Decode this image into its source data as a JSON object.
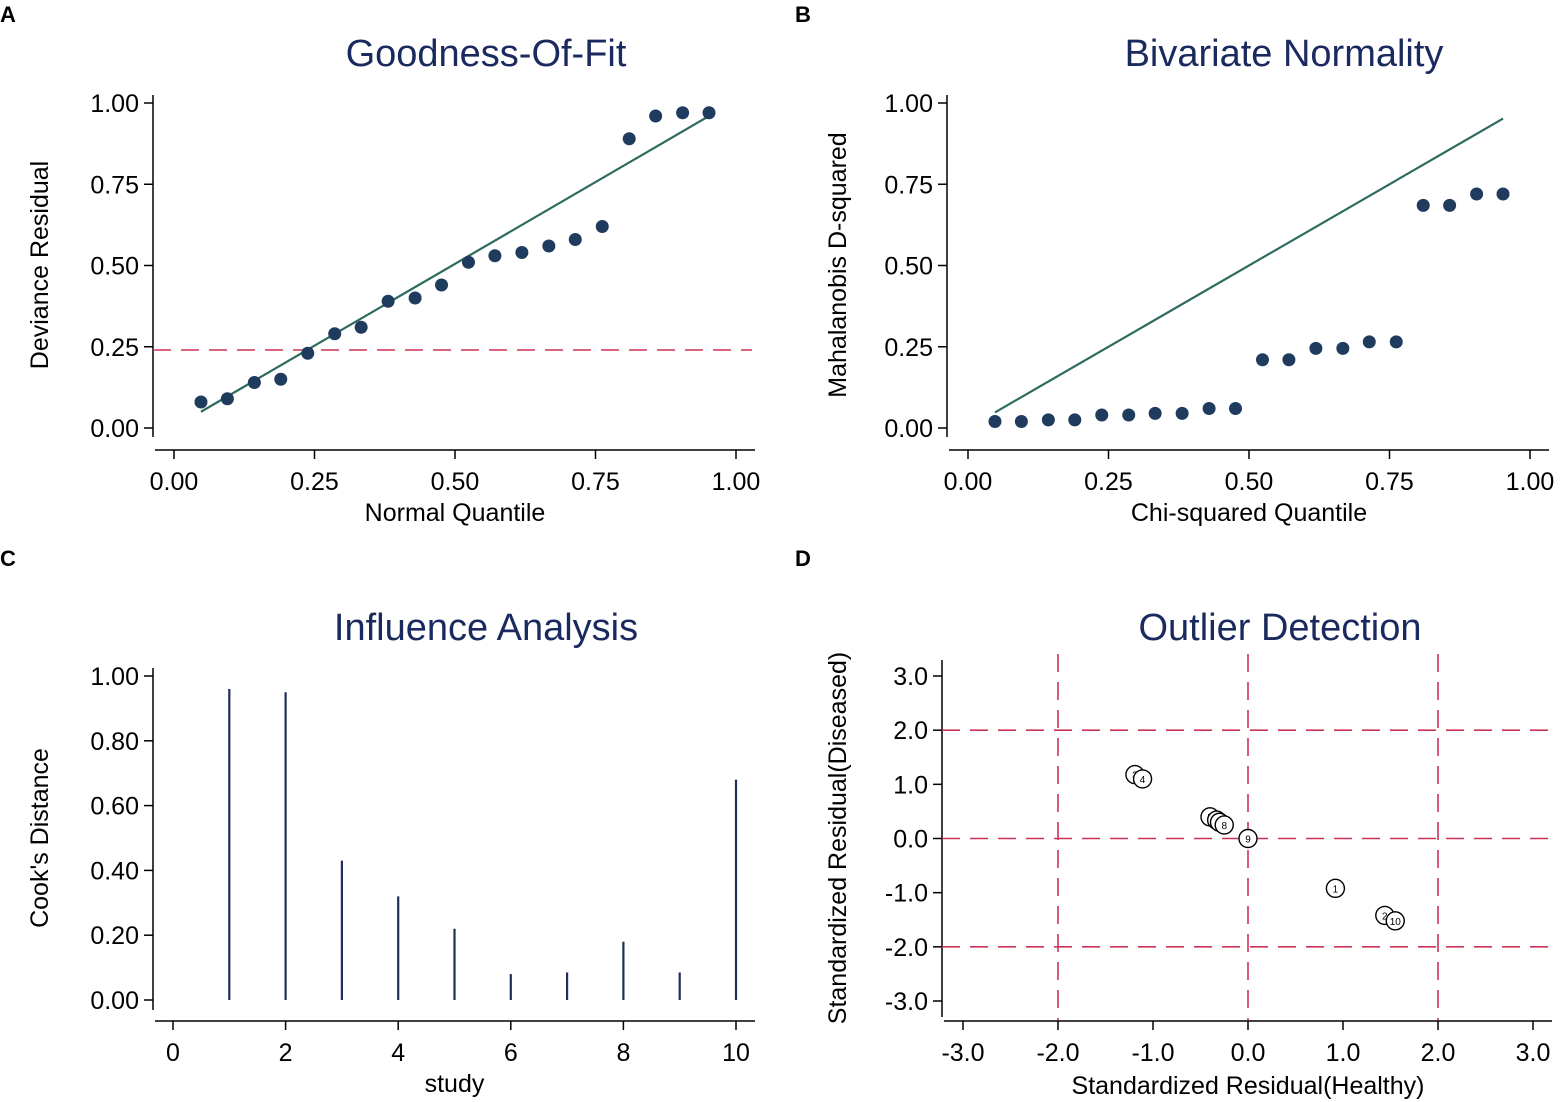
{
  "colors": {
    "title": "#1a2a5e",
    "point": "#1f3b5e",
    "fit_line": "#2e6b5e",
    "ref_line": "#cc3355",
    "spike": "#1f2f5a"
  },
  "chart_data": [
    {
      "id": "A",
      "panel_label": "A",
      "type": "scatter",
      "title": "Goodness-Of-Fit",
      "xlabel": "Normal Quantile",
      "ylabel": "Deviance Residual",
      "xlim": [
        0,
        1
      ],
      "ylim": [
        0,
        1
      ],
      "xticks": [
        0,
        0.25,
        0.5,
        0.75,
        1
      ],
      "yticks": [
        0,
        0.25,
        0.5,
        0.75,
        1
      ],
      "xtick_labels": [
        "0.00",
        "0.25",
        "0.50",
        "0.75",
        "1.00"
      ],
      "ytick_labels": [
        "0.00",
        "0.25",
        "0.50",
        "0.75",
        "1.00"
      ],
      "x": [
        0.048,
        0.095,
        0.143,
        0.19,
        0.238,
        0.286,
        0.333,
        0.381,
        0.429,
        0.476,
        0.524,
        0.571,
        0.619,
        0.667,
        0.714,
        0.762,
        0.81,
        0.857,
        0.905,
        0.952
      ],
      "y": [
        0.08,
        0.09,
        0.14,
        0.15,
        0.23,
        0.29,
        0.31,
        0.39,
        0.4,
        0.44,
        0.51,
        0.53,
        0.54,
        0.56,
        0.58,
        0.62,
        0.89,
        0.96,
        0.97,
        0.97
      ],
      "fit_line": {
        "x": [
          0.048,
          0.952
        ],
        "y": [
          0.05,
          0.96
        ]
      },
      "hline": {
        "y": 0.24
      }
    },
    {
      "id": "B",
      "panel_label": "B",
      "type": "scatter",
      "title": "Bivariate Normality",
      "xlabel": "Chi-squared Quantile",
      "ylabel": "Mahalanobis D-squared",
      "xlim": [
        0,
        1
      ],
      "ylim": [
        0,
        1
      ],
      "xticks": [
        0,
        0.25,
        0.5,
        0.75,
        1
      ],
      "yticks": [
        0,
        0.25,
        0.5,
        0.75,
        1
      ],
      "xtick_labels": [
        "0.00",
        "0.25",
        "0.50",
        "0.75",
        "1.00"
      ],
      "ytick_labels": [
        "0.00",
        "0.25",
        "0.50",
        "0.75",
        "1.00"
      ],
      "x": [
        0.048,
        0.095,
        0.143,
        0.19,
        0.238,
        0.286,
        0.333,
        0.381,
        0.429,
        0.476,
        0.524,
        0.571,
        0.619,
        0.667,
        0.714,
        0.762,
        0.81,
        0.857,
        0.905,
        0.952
      ],
      "y": [
        0.02,
        0.02,
        0.025,
        0.025,
        0.04,
        0.04,
        0.045,
        0.045,
        0.06,
        0.06,
        0.21,
        0.21,
        0.245,
        0.245,
        0.265,
        0.265,
        0.685,
        0.685,
        0.72,
        0.72
      ],
      "fit_line": {
        "x": [
          0.048,
          0.952
        ],
        "y": [
          0.048,
          0.952
        ]
      }
    },
    {
      "id": "C",
      "panel_label": "C",
      "type": "spike",
      "title": "Influence Analysis",
      "xlabel": "study",
      "ylabel": "Cook's Distance",
      "xlim": [
        0,
        10
      ],
      "ylim": [
        0,
        1
      ],
      "xticks": [
        0,
        2,
        4,
        6,
        8,
        10
      ],
      "yticks": [
        0,
        0.2,
        0.4,
        0.6,
        0.8,
        1
      ],
      "xtick_labels": [
        "0",
        "2",
        "4",
        "6",
        "8",
        "10"
      ],
      "ytick_labels": [
        "0.00",
        "0.20",
        "0.40",
        "0.60",
        "0.80",
        "1.00"
      ],
      "categories": [
        1,
        2,
        3,
        4,
        5,
        6,
        7,
        8,
        9,
        10
      ],
      "values": [
        0.96,
        0.95,
        0.43,
        0.32,
        0.22,
        0.08,
        0.085,
        0.18,
        0.085,
        0.68
      ]
    },
    {
      "id": "D",
      "panel_label": "D",
      "type": "scatter",
      "title": "Outlier Detection",
      "xlabel": "Standardized Residual(Healthy)",
      "ylabel": "Standardized Residual(Diseased)",
      "xlim": [
        -3,
        3
      ],
      "ylim": [
        -3,
        3
      ],
      "xticks": [
        -3,
        -2,
        -1,
        0,
        1,
        2,
        3
      ],
      "yticks": [
        -3,
        -2,
        -1,
        0,
        1,
        2,
        3
      ],
      "xtick_labels": [
        "-3.0",
        "-2.0",
        "-1.0",
        "0.0",
        "1.0",
        "2.0",
        "3.0"
      ],
      "ytick_labels": [
        "-3.0",
        "-2.0",
        "-1.0",
        "0.0",
        "1.0",
        "2.0",
        "3.0"
      ],
      "vlines": [
        -2,
        0,
        2
      ],
      "hlines": [
        -2,
        0,
        2
      ],
      "points": [
        {
          "label": "1",
          "x": 0.92,
          "y": -0.92
        },
        {
          "label": "2",
          "x": 1.44,
          "y": -1.42
        },
        {
          "label": "10",
          "x": 1.55,
          "y": -1.52
        },
        {
          "label": "3",
          "x": -1.19,
          "y": 1.18
        },
        {
          "label": "4",
          "x": -1.11,
          "y": 1.1
        },
        {
          "label": "5",
          "x": -0.4,
          "y": 0.4
        },
        {
          "label": "6",
          "x": -0.33,
          "y": 0.34
        },
        {
          "label": "7",
          "x": -0.3,
          "y": 0.3
        },
        {
          "label": "8",
          "x": -0.25,
          "y": 0.25
        },
        {
          "label": "9",
          "x": 0.0,
          "y": 0.0
        }
      ]
    }
  ]
}
